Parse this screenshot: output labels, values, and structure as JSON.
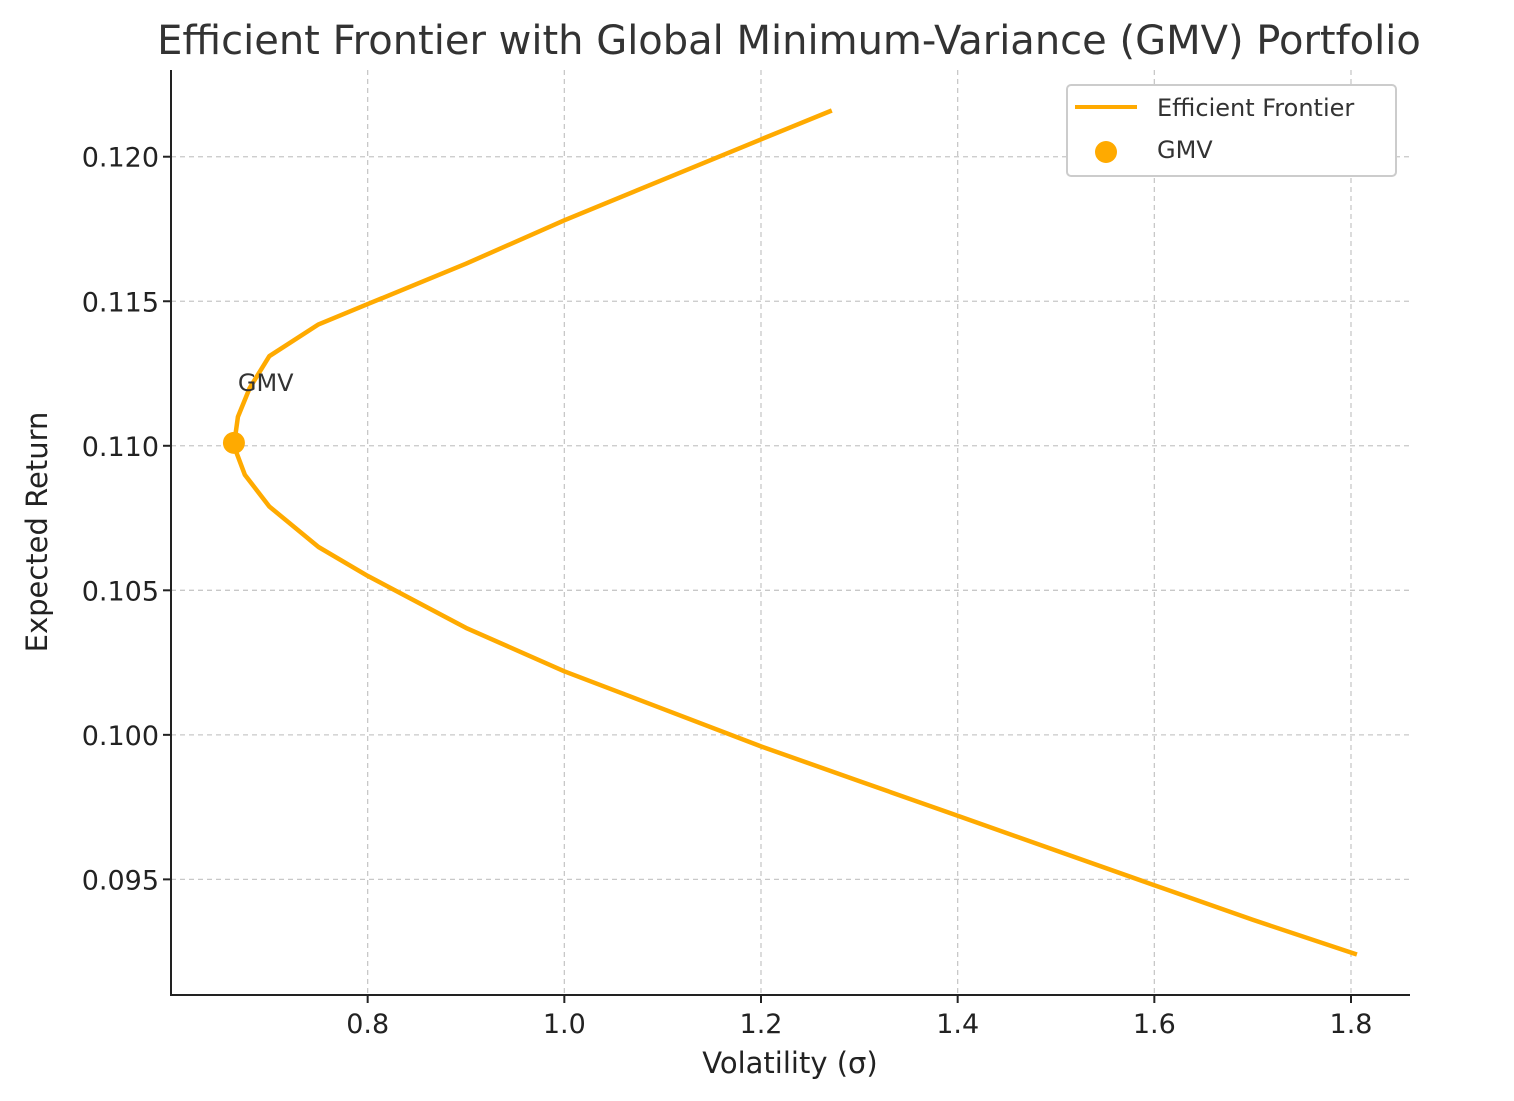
{
  "chart_data": {
    "type": "line",
    "title": "Efficient Frontier with Global Minimum-Variance (GMV) Portfolio",
    "xlabel": "Volatility (σ)",
    "ylabel": "Expected Return",
    "xlim": [
      0.6,
      1.86
    ],
    "ylim": [
      0.091,
      0.123
    ],
    "x_ticks": [
      0.8,
      1.0,
      1.2,
      1.4,
      1.6,
      1.8
    ],
    "x_tick_labels": [
      "0.8",
      "1.0",
      "1.2",
      "1.4",
      "1.6",
      "1.8"
    ],
    "y_ticks": [
      0.095,
      0.1,
      0.105,
      0.11,
      0.115,
      0.12
    ],
    "y_tick_labels": [
      "0.095",
      "0.100",
      "0.105",
      "0.110",
      "0.115",
      "0.120"
    ],
    "grid": true,
    "legend_position": "top-right",
    "series": [
      {
        "name": "Efficient Frontier",
        "kind": "line",
        "color": "#FFAA00",
        "points": [
          [
            1.806,
            0.0924
          ],
          [
            1.7,
            0.0936
          ],
          [
            1.6,
            0.0948
          ],
          [
            1.5,
            0.096
          ],
          [
            1.4,
            0.0972
          ],
          [
            1.3,
            0.0984
          ],
          [
            1.2,
            0.0996
          ],
          [
            1.1,
            0.1009
          ],
          [
            1.0,
            0.1022
          ],
          [
            0.9,
            0.1037
          ],
          [
            0.8,
            0.1055
          ],
          [
            0.75,
            0.1065
          ],
          [
            0.7,
            0.1079
          ],
          [
            0.675,
            0.109
          ],
          [
            0.664,
            0.11
          ],
          [
            0.668,
            0.111
          ],
          [
            0.68,
            0.112
          ],
          [
            0.7,
            0.1131
          ],
          [
            0.75,
            0.1142
          ],
          [
            0.8,
            0.1149
          ],
          [
            0.9,
            0.1163
          ],
          [
            1.0,
            0.1178
          ],
          [
            1.1,
            0.1192
          ],
          [
            1.2,
            0.1206
          ],
          [
            1.272,
            0.1216
          ]
        ]
      },
      {
        "name": "GMV",
        "kind": "scatter",
        "color": "#FFAA00",
        "points": [
          [
            0.664,
            0.1101
          ]
        ]
      }
    ],
    "annotations": [
      {
        "text": "GMV",
        "x": 0.668,
        "y": 0.1122
      }
    ]
  }
}
